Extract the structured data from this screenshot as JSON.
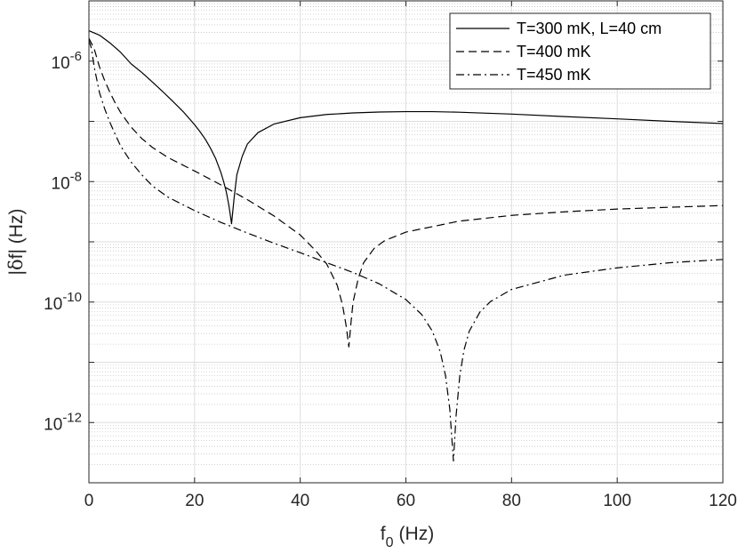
{
  "chart_data": {
    "type": "line",
    "xlabel": "f",
    "xlabel_sub": "0",
    "xlabel_unit": "(Hz)",
    "ylabel_pre": "|",
    "ylabel_sym": "δ",
    "ylabel_post": "f| (Hz)",
    "xlim": [
      0,
      120
    ],
    "ylim": [
      1e-13,
      1e-05
    ],
    "yscale": "log",
    "grid": true,
    "minor_grid": true,
    "legend_position": "top-right",
    "x_ticks": [
      "0",
      "20",
      "40",
      "60",
      "80",
      "100",
      "120"
    ],
    "y_ticks": [
      {
        "base": "10",
        "exp": "-6"
      },
      {
        "base": "10",
        "exp": "-8"
      },
      {
        "base": "10",
        "exp": "-10"
      },
      {
        "base": "10",
        "exp": "-12"
      }
    ],
    "series": [
      {
        "name": "T=300 mK, L=40 cm",
        "dash": "solid",
        "color": "#000000",
        "points": [
          [
            0,
            3.2e-06
          ],
          [
            2,
            2.7e-06
          ],
          [
            4,
            2e-06
          ],
          [
            6,
            1.4e-06
          ],
          [
            8,
            9e-07
          ],
          [
            10,
            6.5e-07
          ],
          [
            12,
            4.5e-07
          ],
          [
            14,
            3.1e-07
          ],
          [
            16,
            2.1e-07
          ],
          [
            18,
            1.4e-07
          ],
          [
            20,
            8.8e-08
          ],
          [
            21,
            6.8e-08
          ],
          [
            22,
            5.1e-08
          ],
          [
            23,
            3.6e-08
          ],
          [
            24,
            2.4e-08
          ],
          [
            25,
            1.4e-08
          ],
          [
            25.5,
            1e-08
          ],
          [
            26,
            6.8e-09
          ],
          [
            26.5,
            4e-09
          ],
          [
            27,
            2e-09
          ],
          [
            27.5,
            5.5e-09
          ],
          [
            28,
            1.3e-08
          ],
          [
            29,
            2.6e-08
          ],
          [
            30,
            4.2e-08
          ],
          [
            32,
            6.5e-08
          ],
          [
            35,
            9e-08
          ],
          [
            40,
            1.15e-07
          ],
          [
            45,
            1.3e-07
          ],
          [
            50,
            1.38e-07
          ],
          [
            55,
            1.43e-07
          ],
          [
            60,
            1.45e-07
          ],
          [
            65,
            1.45e-07
          ],
          [
            70,
            1.42e-07
          ],
          [
            80,
            1.32e-07
          ],
          [
            90,
            1.2e-07
          ],
          [
            100,
            1.1e-07
          ],
          [
            110,
            1e-07
          ],
          [
            120,
            9.2e-08
          ]
        ]
      },
      {
        "name": "T=400 mK",
        "dash": "dashed",
        "color": "#000000",
        "points": [
          [
            0,
            2.4e-06
          ],
          [
            1,
            1.6e-06
          ],
          [
            2,
            8e-07
          ],
          [
            3,
            4.7e-07
          ],
          [
            4,
            3e-07
          ],
          [
            5,
            2e-07
          ],
          [
            6,
            1.4e-07
          ],
          [
            8,
            8e-08
          ],
          [
            10,
            5.2e-08
          ],
          [
            12,
            3.7e-08
          ],
          [
            15,
            2.5e-08
          ],
          [
            20,
            1.5e-08
          ],
          [
            25,
            8.8e-09
          ],
          [
            30,
            5e-09
          ],
          [
            35,
            2.7e-09
          ],
          [
            40,
            1.3e-09
          ],
          [
            43,
            7e-10
          ],
          [
            45,
            4.3e-10
          ],
          [
            47,
            1.9e-10
          ],
          [
            48,
            9e-11
          ],
          [
            48.7,
            4e-11
          ],
          [
            49.2,
            1.8e-11
          ],
          [
            49.6,
            4.5e-11
          ],
          [
            50,
            1e-10
          ],
          [
            51,
            2.5e-10
          ],
          [
            52,
            4.5e-10
          ],
          [
            54,
            7.8e-10
          ],
          [
            56,
            1.05e-09
          ],
          [
            60,
            1.45e-09
          ],
          [
            70,
            2.2e-09
          ],
          [
            80,
            2.75e-09
          ],
          [
            90,
            3.15e-09
          ],
          [
            100,
            3.5e-09
          ],
          [
            110,
            3.75e-09
          ],
          [
            120,
            4e-09
          ]
        ]
      },
      {
        "name": "T=450 mK",
        "dash": "dashdot",
        "color": "#000000",
        "points": [
          [
            0,
            2.2e-06
          ],
          [
            0.5,
            1.6e-06
          ],
          [
            1,
            8e-07
          ],
          [
            2,
            3e-07
          ],
          [
            3,
            1.6e-07
          ],
          [
            4,
            9.5e-08
          ],
          [
            5,
            6e-08
          ],
          [
            6,
            3.9e-08
          ],
          [
            8,
            2.1e-08
          ],
          [
            10,
            1.3e-08
          ],
          [
            12,
            8.5e-09
          ],
          [
            15,
            5.5e-09
          ],
          [
            20,
            3.3e-09
          ],
          [
            25,
            2.1e-09
          ],
          [
            30,
            1.4e-09
          ],
          [
            35,
            9.5e-10
          ],
          [
            40,
            6.6e-10
          ],
          [
            45,
            4.5e-10
          ],
          [
            50,
            3.1e-10
          ],
          [
            55,
            2e-10
          ],
          [
            60,
            1.1e-10
          ],
          [
            63,
            6.2e-11
          ],
          [
            65,
            3.3e-11
          ],
          [
            66.5,
            1.5e-11
          ],
          [
            67.5,
            6e-12
          ],
          [
            68.3,
            1.7e-12
          ],
          [
            69,
            2.3e-13
          ],
          [
            69.5,
            1.3e-12
          ],
          [
            70.2,
            6e-12
          ],
          [
            71,
            1.6e-11
          ],
          [
            72,
            3.3e-11
          ],
          [
            74,
            6.8e-11
          ],
          [
            76,
            1.02e-10
          ],
          [
            80,
            1.62e-10
          ],
          [
            90,
            2.8e-10
          ],
          [
            100,
            3.7e-10
          ],
          [
            110,
            4.5e-10
          ],
          [
            120,
            5.1e-10
          ]
        ]
      }
    ]
  }
}
